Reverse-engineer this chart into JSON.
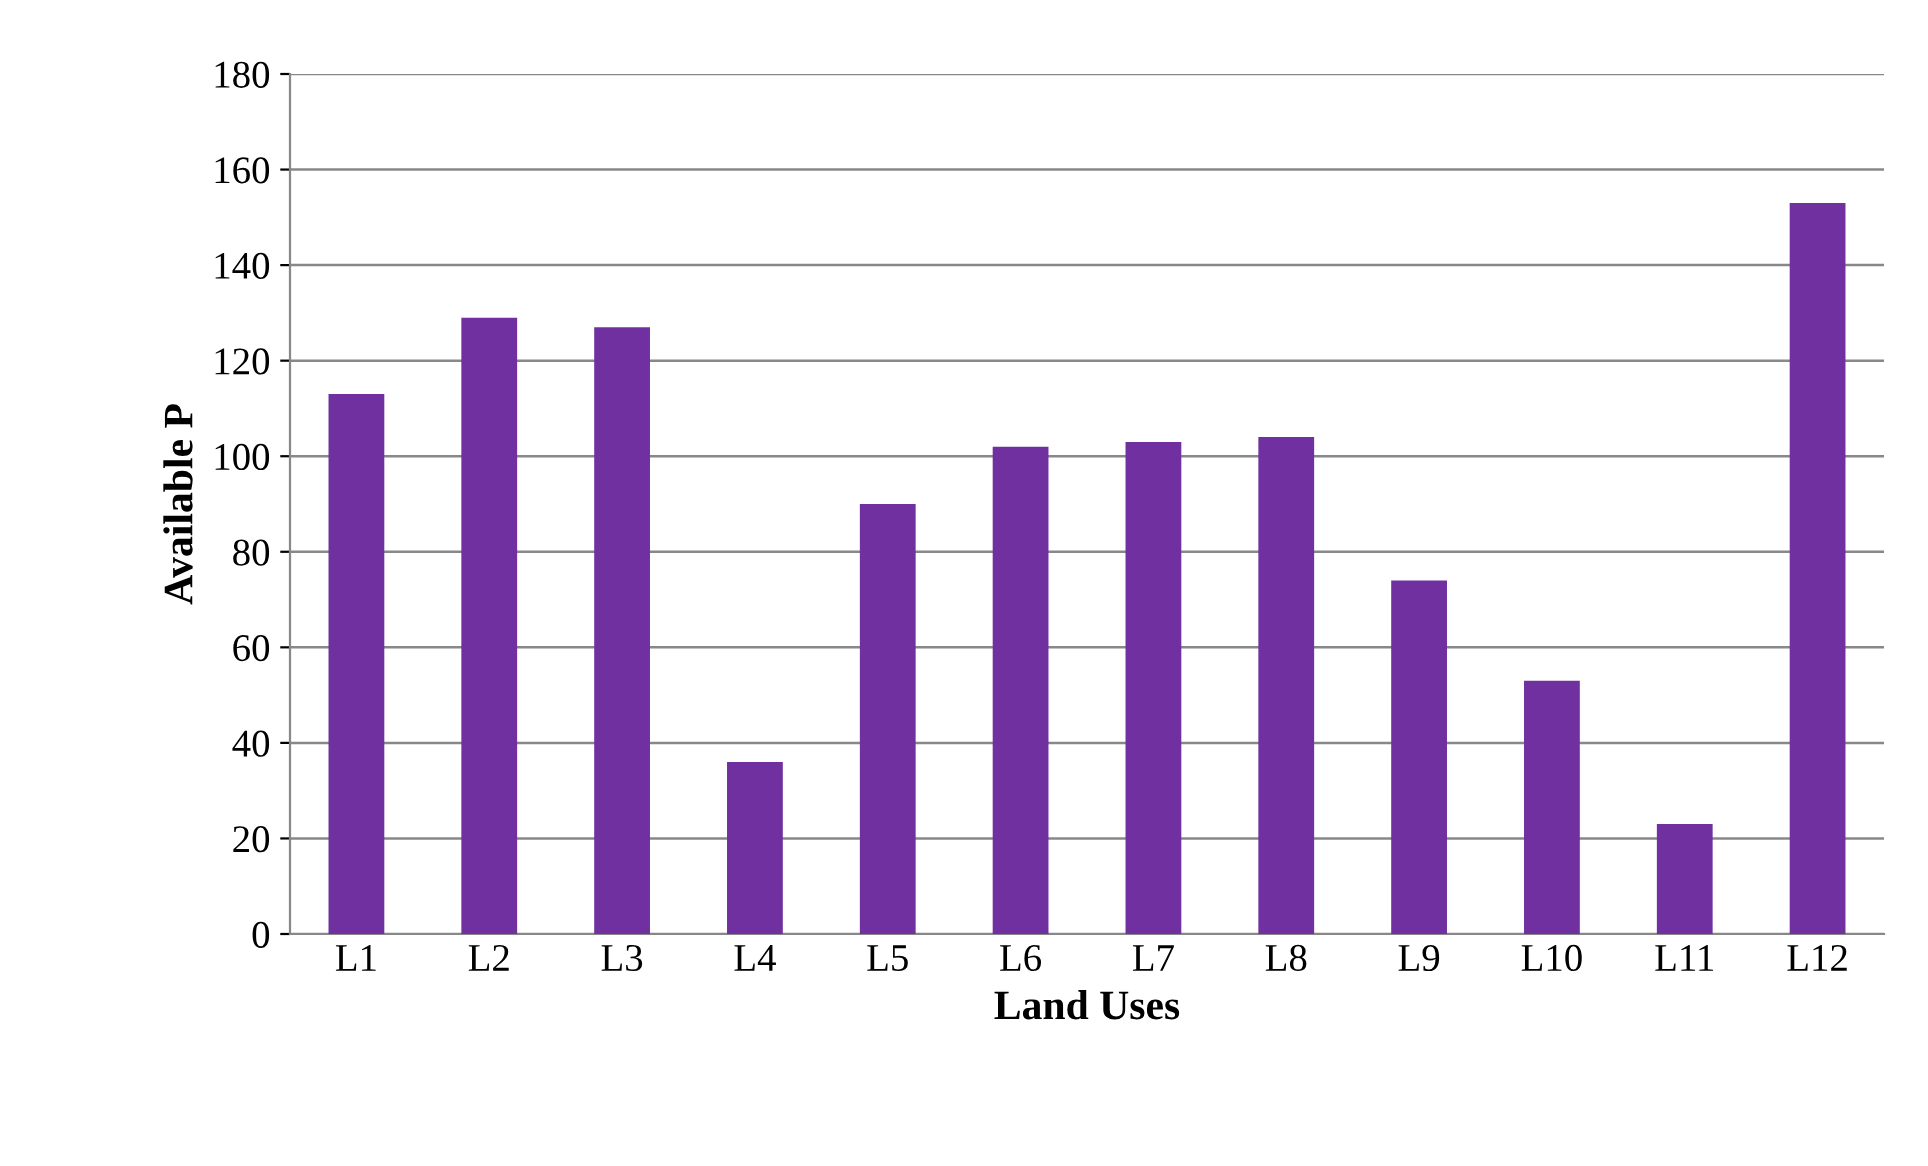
{
  "chart_data": {
    "type": "bar",
    "xlabel": "Land Uses",
    "ylabel": "Available P",
    "categories": [
      "L1",
      "L2",
      "L3",
      "L4",
      "L5",
      "L6",
      "L7",
      "L8",
      "L9",
      "L10",
      "L11",
      "L12"
    ],
    "values": [
      113,
      129,
      127,
      36,
      90,
      102,
      103,
      104,
      74,
      53,
      23,
      153
    ],
    "color": "#7030a0",
    "ylim": [
      0,
      180
    ],
    "yticks": [
      0,
      20,
      40,
      60,
      80,
      100,
      120,
      140,
      160,
      180
    ],
    "grid": "y",
    "legend": false
  }
}
